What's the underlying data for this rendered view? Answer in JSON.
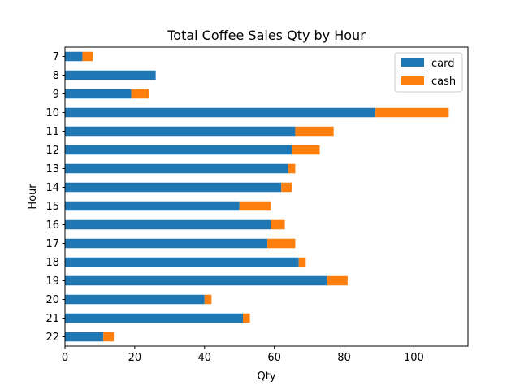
{
  "chart_data": {
    "type": "bar",
    "orientation": "horizontal",
    "stacked": true,
    "title": "Total Coffee Sales Qty by Hour",
    "xlabel": "Qty",
    "ylabel": "Hour",
    "categories": [
      "7",
      "8",
      "9",
      "10",
      "11",
      "12",
      "13",
      "14",
      "15",
      "16",
      "17",
      "18",
      "19",
      "20",
      "21",
      "22"
    ],
    "series": [
      {
        "name": "card",
        "color": "#1f77b4",
        "values": [
          5,
          26,
          19,
          89,
          66,
          65,
          64,
          62,
          50,
          59,
          58,
          67,
          75,
          40,
          51,
          11
        ]
      },
      {
        "name": "cash",
        "color": "#ff7f0e",
        "values": [
          3,
          0,
          5,
          21,
          11,
          8,
          2,
          3,
          9,
          4,
          8,
          2,
          6,
          2,
          2,
          3
        ]
      }
    ],
    "xlim": [
      0,
      115.5
    ],
    "xticks": [
      0,
      20,
      40,
      60,
      80,
      100
    ],
    "grid": false,
    "legend": "top-right"
  }
}
